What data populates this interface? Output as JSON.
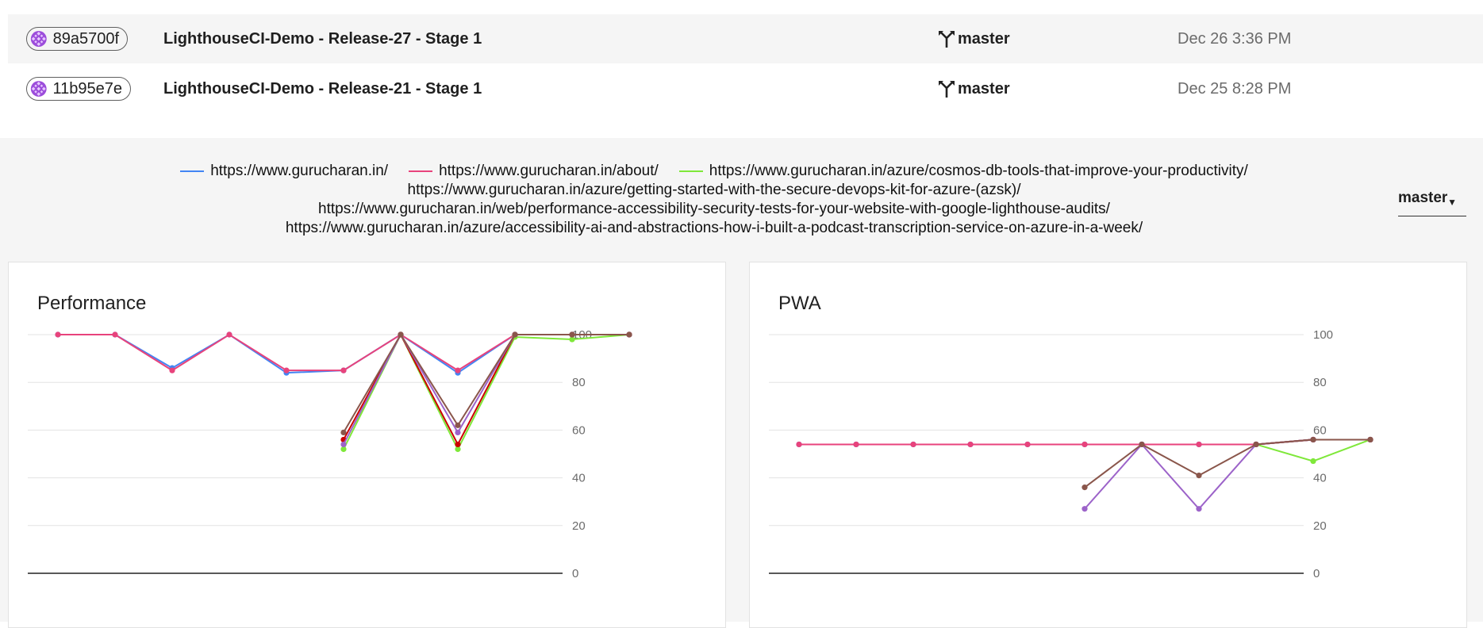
{
  "builds": [
    {
      "hash": "89a5700f",
      "name": "LighthouseCI-Demo - Release-27 - Stage 1",
      "branch": "master",
      "date": "Dec 26 3:36 PM"
    },
    {
      "hash": "11b95e7e",
      "name": "LighthouseCI-Demo - Release-21 - Stage 1",
      "branch": "master",
      "date": "Dec 25 8:28 PM"
    }
  ],
  "legend": [
    {
      "url": "https://www.gurucharan.in/",
      "color": "#4285f4"
    },
    {
      "url": "https://www.gurucharan.in/about/",
      "color": "#e8437c"
    },
    {
      "url": "https://www.gurucharan.in/azure/cosmos-db-tools-that-improve-your-productivity/",
      "color": "#7fe83a"
    },
    {
      "url": "https://www.gurucharan.in/azure/getting-started-with-the-secure-devops-kit-for-azure-(azsk)/",
      "color": "#cc0000"
    },
    {
      "url": "https://www.gurucharan.in/web/performance-accessibility-security-tests-for-your-website-with-google-lighthouse-audits/",
      "color": "#9c63c9"
    },
    {
      "url": "https://www.gurucharan.in/azure/accessibility-ai-and-abstractions-how-i-built-a-podcast-transcription-service-on-azure-in-a-week/",
      "color": "#8a564b"
    }
  ],
  "branch_selector": {
    "value": "master"
  },
  "charts": {
    "performance": {
      "title": "Performance"
    },
    "pwa": {
      "title": "PWA"
    }
  },
  "chart_data": [
    {
      "type": "line",
      "title": "Performance",
      "ylim": [
        0,
        100
      ],
      "yticks": [
        0,
        20,
        40,
        60,
        80,
        100
      ],
      "x": [
        1,
        2,
        3,
        4,
        5,
        6,
        7,
        8,
        9,
        10,
        11
      ],
      "series": [
        {
          "name": "https://www.gurucharan.in/",
          "color": "#4285f4",
          "values": [
            100,
            100,
            86,
            100,
            84,
            85,
            100,
            84,
            100,
            100,
            100
          ]
        },
        {
          "name": "https://www.gurucharan.in/about/",
          "color": "#e8437c",
          "values": [
            100,
            100,
            85,
            100,
            85,
            85,
            100,
            85,
            100,
            100,
            100
          ]
        },
        {
          "name": "https://www.gurucharan.in/azure/cosmos-db-tools-that-improve-your-productivity/",
          "color": "#7fe83a",
          "values": [
            null,
            null,
            null,
            null,
            null,
            52,
            100,
            52,
            99,
            98,
            100
          ]
        },
        {
          "name": "https://www.gurucharan.in/azure/getting-started-with-the-secure-devops-kit-for-azure-(azsk)/",
          "color": "#cc0000",
          "values": [
            null,
            null,
            null,
            null,
            null,
            56,
            100,
            54,
            100,
            100,
            100
          ]
        },
        {
          "name": "https://www.gurucharan.in/web/performance-accessibility-security-tests-for-your-website-with-google-lighthouse-audits/",
          "color": "#9c63c9",
          "values": [
            null,
            null,
            null,
            null,
            null,
            54,
            100,
            59,
            100,
            100,
            100
          ]
        },
        {
          "name": "https://www.gurucharan.in/azure/accessibility-ai-and-abstractions-how-i-built-a-podcast-transcription-service-on-azure-in-a-week/",
          "color": "#8a564b",
          "values": [
            null,
            null,
            null,
            null,
            null,
            59,
            100,
            62,
            100,
            100,
            100
          ]
        }
      ]
    },
    {
      "type": "line",
      "title": "PWA",
      "ylim": [
        0,
        100
      ],
      "yticks": [
        0,
        20,
        40,
        60,
        80,
        100
      ],
      "x": [
        1,
        2,
        3,
        4,
        5,
        6,
        7,
        8,
        9,
        10,
        11
      ],
      "series": [
        {
          "name": "https://www.gurucharan.in/",
          "color": "#4285f4",
          "values": [
            54,
            54,
            54,
            54,
            54,
            54,
            54,
            54,
            54,
            56,
            56
          ]
        },
        {
          "name": "https://www.gurucharan.in/about/",
          "color": "#e8437c",
          "values": [
            54,
            54,
            54,
            54,
            54,
            54,
            54,
            54,
            54,
            56,
            56
          ]
        },
        {
          "name": "https://www.gurucharan.in/azure/cosmos-db-tools-that-improve-your-productivity/",
          "color": "#7fe83a",
          "values": [
            null,
            null,
            null,
            null,
            null,
            null,
            null,
            null,
            54,
            47,
            56
          ]
        },
        {
          "name": "https://www.gurucharan.in/azure/getting-started-with-the-secure-devops-kit-for-azure-(azsk)/",
          "color": "#cc0000",
          "values": [
            null,
            null,
            null,
            null,
            null,
            null,
            null,
            null,
            54,
            56,
            56
          ]
        },
        {
          "name": "https://www.gurucharan.in/web/performance-accessibility-security-tests-for-your-website-with-google-lighthouse-audits/",
          "color": "#9c63c9",
          "values": [
            null,
            null,
            null,
            null,
            null,
            27,
            54,
            27,
            54,
            56,
            56
          ]
        },
        {
          "name": "https://www.gurucharan.in/azure/accessibility-ai-and-abstractions-how-i-built-a-podcast-transcription-service-on-azure-in-a-week/",
          "color": "#8a564b",
          "values": [
            null,
            null,
            null,
            null,
            null,
            36,
            54,
            41,
            54,
            56,
            56
          ]
        }
      ]
    }
  ]
}
